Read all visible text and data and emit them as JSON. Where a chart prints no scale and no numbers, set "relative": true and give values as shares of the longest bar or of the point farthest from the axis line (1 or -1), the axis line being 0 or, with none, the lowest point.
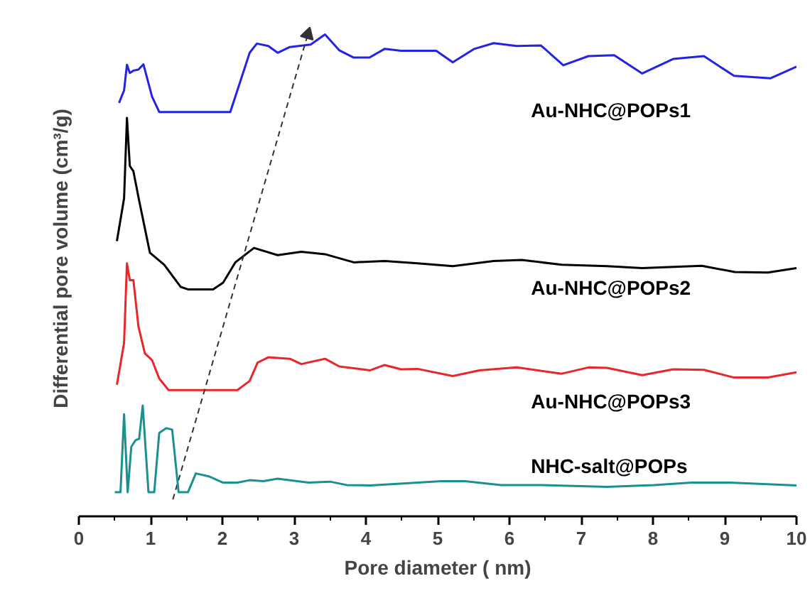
{
  "chart_data": {
    "type": "line",
    "relative": true,
    "xlabel": "Pore diameter ( nm)",
    "ylabel": "Differential pore volume (cm³/g)",
    "xlim": [
      0,
      10
    ],
    "xticks": [
      0,
      1,
      2,
      3,
      4,
      5,
      6,
      7,
      8,
      9,
      10
    ],
    "grid": false,
    "line_style": "solid",
    "series": [
      {
        "name": "Au-NHC@POPs1",
        "color": "#2323e6",
        "x": [
          0.56,
          0.63,
          0.67,
          0.71,
          0.76,
          0.83,
          0.9,
          1.02,
          1.12,
          2.11,
          2.38,
          2.48,
          2.64,
          2.77,
          2.94,
          3.23,
          3.43,
          3.63,
          3.83,
          4.05,
          4.26,
          4.49,
          4.98,
          5.21,
          5.51,
          5.78,
          6.1,
          6.44,
          6.75,
          7.1,
          7.46,
          7.85,
          8.28,
          8.71,
          9.13,
          9.64,
          10.0
        ],
        "values": [
          0.858,
          0.884,
          0.937,
          0.92,
          0.925,
          0.927,
          0.938,
          0.871,
          0.839,
          0.839,
          0.962,
          0.981,
          0.976,
          0.962,
          0.974,
          0.979,
          1.0,
          0.967,
          0.952,
          0.952,
          0.97,
          0.966,
          0.966,
          0.942,
          0.97,
          0.982,
          0.976,
          0.977,
          0.936,
          0.955,
          0.957,
          0.919,
          0.949,
          0.955,
          0.914,
          0.909,
          0.933
        ]
      },
      {
        "name": "Au-NHC@POPs2",
        "color": "#000000",
        "x": [
          0.53,
          0.63,
          0.67,
          0.71,
          0.76,
          0.84,
          0.99,
          1.19,
          1.42,
          1.52,
          1.87,
          2.01,
          2.18,
          2.44,
          2.77,
          3.1,
          3.43,
          3.83,
          4.26,
          4.72,
          5.21,
          5.78,
          6.17,
          6.73,
          7.36,
          7.85,
          8.68,
          9.14,
          9.6,
          10.0
        ],
        "values": [
          0.571,
          0.66,
          0.827,
          0.727,
          0.716,
          0.655,
          0.547,
          0.522,
          0.476,
          0.471,
          0.471,
          0.485,
          0.527,
          0.557,
          0.542,
          0.549,
          0.544,
          0.527,
          0.53,
          0.525,
          0.519,
          0.53,
          0.532,
          0.522,
          0.519,
          0.515,
          0.52,
          0.507,
          0.506,
          0.515
        ]
      },
      {
        "name": "Au-NHC@POPs3",
        "color": "#e8262b",
        "x": [
          0.53,
          0.63,
          0.67,
          0.71,
          0.76,
          0.83,
          0.92,
          1.02,
          1.12,
          1.25,
          2.21,
          2.38,
          2.49,
          2.64,
          2.94,
          3.1,
          3.43,
          3.63,
          4.06,
          4.26,
          4.49,
          4.72,
          5.21,
          5.58,
          6.1,
          6.73,
          7.1,
          7.36,
          7.85,
          8.28,
          8.71,
          9.13,
          9.6,
          10.0
        ],
        "values": [
          0.273,
          0.36,
          0.525,
          0.49,
          0.49,
          0.394,
          0.338,
          0.324,
          0.286,
          0.262,
          0.262,
          0.281,
          0.319,
          0.33,
          0.327,
          0.316,
          0.327,
          0.311,
          0.303,
          0.314,
          0.305,
          0.306,
          0.291,
          0.303,
          0.309,
          0.296,
          0.309,
          0.308,
          0.293,
          0.305,
          0.304,
          0.288,
          0.288,
          0.299
        ]
      },
      {
        "color": "#333333",
        "line_style": "dashed",
        "marker": "triangle",
        "x": [
          1.31,
          3.19
        ],
        "values": [
          0.035,
          1.0
        ]
      },
      {
        "name": "NHC-salt@POPs",
        "color": "#1a9090",
        "x": [
          0.5,
          0.58,
          0.63,
          0.68,
          0.73,
          0.79,
          0.84,
          0.89,
          0.97,
          1.05,
          1.12,
          1.22,
          1.3,
          1.39,
          1.52,
          1.63,
          1.81,
          2.01,
          2.21,
          2.38,
          2.57,
          2.77,
          3.2,
          3.5,
          3.73,
          4.06,
          4.52,
          5.05,
          5.38,
          5.88,
          6.44,
          7.36,
          8.02,
          8.54,
          9.07,
          10.0
        ],
        "values": [
          0.05,
          0.05,
          0.212,
          0.05,
          0.144,
          0.158,
          0.161,
          0.23,
          0.05,
          0.05,
          0.173,
          0.183,
          0.18,
          0.05,
          0.05,
          0.089,
          0.083,
          0.07,
          0.07,
          0.075,
          0.073,
          0.078,
          0.07,
          0.072,
          0.065,
          0.064,
          0.068,
          0.073,
          0.073,
          0.065,
          0.065,
          0.061,
          0.065,
          0.07,
          0.07,
          0.064
        ]
      }
    ]
  }
}
